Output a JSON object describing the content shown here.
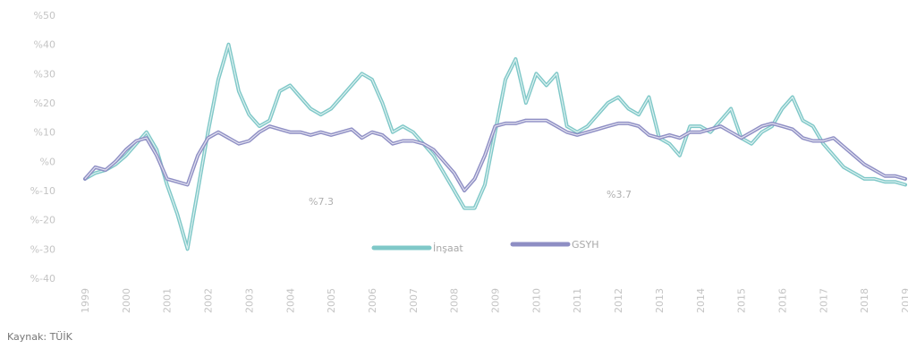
{
  "chart_data": {
    "type": "line",
    "title": "",
    "xlabel": "",
    "ylabel": "",
    "ylim": [
      -40,
      50
    ],
    "y_ticks": [
      50,
      40,
      30,
      20,
      10,
      0,
      -10,
      -20,
      -30,
      -40
    ],
    "y_tick_labels": [
      "%50",
      "%40",
      "%30",
      "%20",
      "%10",
      "%0",
      "%-10",
      "%-20",
      "%-30",
      "%-40"
    ],
    "x_range": [
      1999,
      2019
    ],
    "x_ticks": [
      1999,
      2000,
      2001,
      2002,
      2003,
      2004,
      2005,
      2006,
      2007,
      2008,
      2009,
      2010,
      2011,
      2012,
      2013,
      2014,
      2015,
      2016,
      2017,
      2018,
      2019
    ],
    "x_tick_labels": [
      "1999",
      "2000",
      "2001",
      "2002",
      "2003",
      "2004",
      "2005",
      "2006",
      "2007",
      "2008",
      "2009",
      "2010",
      "2011",
      "2012",
      "2013",
      "2014",
      "2015",
      "2016",
      "2017",
      "2018",
      "2019"
    ],
    "grid": false,
    "legend_position": "bottom-center",
    "series": [
      {
        "name": "İnşaat",
        "color": "#7fc8c8",
        "x": [
          1999.0,
          1999.25,
          1999.5,
          1999.75,
          2000.0,
          2000.25,
          2000.5,
          2000.75,
          2001.0,
          2001.25,
          2001.5,
          2001.75,
          2002.0,
          2002.25,
          2002.5,
          2002.75,
          2003.0,
          2003.25,
          2003.5,
          2003.75,
          2004.0,
          2004.25,
          2004.5,
          2004.75,
          2005.0,
          2005.25,
          2005.5,
          2005.75,
          2006.0,
          2006.25,
          2006.5,
          2006.75,
          2007.0,
          2007.25,
          2007.5,
          2007.75,
          2008.0,
          2008.25,
          2008.5,
          2008.75,
          2009.0,
          2009.25,
          2009.5,
          2009.75,
          2010.0,
          2010.25,
          2010.5,
          2010.75,
          2011.0,
          2011.25,
          2011.5,
          2011.75,
          2012.0,
          2012.25,
          2012.5,
          2012.75,
          2013.0,
          2013.25,
          2013.5,
          2013.75,
          2014.0,
          2014.25,
          2014.5,
          2014.75,
          2015.0,
          2015.25,
          2015.5,
          2015.75,
          2016.0,
          2016.25,
          2016.5,
          2016.75,
          2017.0,
          2017.25,
          2017.5,
          2017.75,
          2018.0,
          2018.25,
          2018.5,
          2018.75,
          2019.0
        ],
        "values": [
          -6,
          -4,
          -3,
          -1,
          2,
          6,
          10,
          4,
          -8,
          -18,
          -30,
          -10,
          10,
          28,
          40,
          24,
          16,
          12,
          14,
          24,
          26,
          22,
          18,
          16,
          18,
          22,
          26,
          30,
          28,
          20,
          10,
          12,
          10,
          6,
          2,
          -4,
          -10,
          -16,
          -16,
          -8,
          10,
          28,
          35,
          20,
          30,
          26,
          30,
          12,
          10,
          12,
          16,
          20,
          22,
          18,
          16,
          22,
          8,
          6,
          2,
          12,
          12,
          10,
          14,
          18,
          8,
          6,
          10,
          12,
          18,
          22,
          14,
          12,
          6,
          2,
          -2,
          -4,
          -6,
          -6,
          -7,
          -7,
          -8
        ]
      },
      {
        "name": "GSYH",
        "color": "#8e8ec4",
        "x": [
          1999.0,
          1999.25,
          1999.5,
          1999.75,
          2000.0,
          2000.25,
          2000.5,
          2000.75,
          2001.0,
          2001.25,
          2001.5,
          2001.75,
          2002.0,
          2002.25,
          2002.5,
          2002.75,
          2003.0,
          2003.25,
          2003.5,
          2003.75,
          2004.0,
          2004.25,
          2004.5,
          2004.75,
          2005.0,
          2005.25,
          2005.5,
          2005.75,
          2006.0,
          2006.25,
          2006.5,
          2006.75,
          2007.0,
          2007.25,
          2007.5,
          2007.75,
          2008.0,
          2008.25,
          2008.5,
          2008.75,
          2009.0,
          2009.25,
          2009.5,
          2009.75,
          2010.0,
          2010.25,
          2010.5,
          2010.75,
          2011.0,
          2011.25,
          2011.5,
          2011.75,
          2012.0,
          2012.25,
          2012.5,
          2012.75,
          2013.0,
          2013.25,
          2013.5,
          2013.75,
          2014.0,
          2014.25,
          2014.5,
          2014.75,
          2015.0,
          2015.25,
          2015.5,
          2015.75,
          2016.0,
          2016.25,
          2016.5,
          2016.75,
          2017.0,
          2017.25,
          2017.5,
          2017.75,
          2018.0,
          2018.25,
          2018.5,
          2018.75,
          2019.0
        ],
        "values": [
          -6,
          -2,
          -3,
          0,
          4,
          7,
          8,
          2,
          -6,
          -7,
          -8,
          2,
          8,
          10,
          8,
          6,
          7,
          10,
          12,
          11,
          10,
          10,
          9,
          10,
          9,
          10,
          11,
          8,
          10,
          9,
          6,
          7,
          7,
          6,
          4,
          0,
          -4,
          -10,
          -6,
          2,
          12,
          13,
          13,
          14,
          14,
          14,
          12,
          10,
          9,
          10,
          11,
          12,
          13,
          13,
          12,
          9,
          8,
          9,
          8,
          10,
          10,
          11,
          12,
          10,
          8,
          10,
          12,
          13,
          12,
          11,
          8,
          7,
          7,
          8,
          5,
          2,
          -1,
          -3,
          -5,
          -5,
          -6
        ]
      }
    ],
    "annotations": [
      "%7.3",
      "%3.7"
    ]
  },
  "source": {
    "label": "Kaynak:",
    "value": "TÜİK"
  }
}
